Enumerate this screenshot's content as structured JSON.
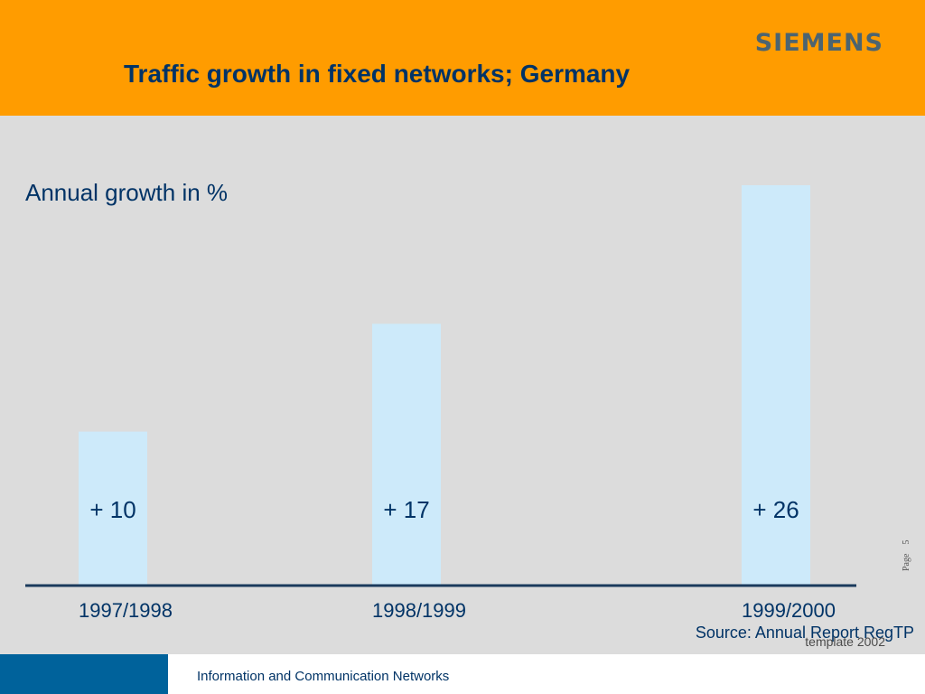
{
  "header": {
    "logo": "SIEMENS",
    "title": "Traffic growth in fixed networks; Germany"
  },
  "chart_data": {
    "type": "bar",
    "title": "",
    "ylabel": "Annual growth in %",
    "xlabel": "",
    "categories": [
      "1997/1998",
      "1998/1999",
      "1999/2000"
    ],
    "values": [
      10,
      17,
      26
    ],
    "data_labels": [
      "+ 10",
      "+ 17",
      "+ 26"
    ],
    "ylim": [
      0,
      26
    ],
    "grid": false,
    "bar_color": "#cdeafa",
    "axis_color": "#1a3a5c"
  },
  "source": "Source: Annual Report RegTP",
  "template_note": "template 2002",
  "page": {
    "label": "Page",
    "number": "5"
  },
  "footer": {
    "text": "Information and Communication Networks"
  }
}
